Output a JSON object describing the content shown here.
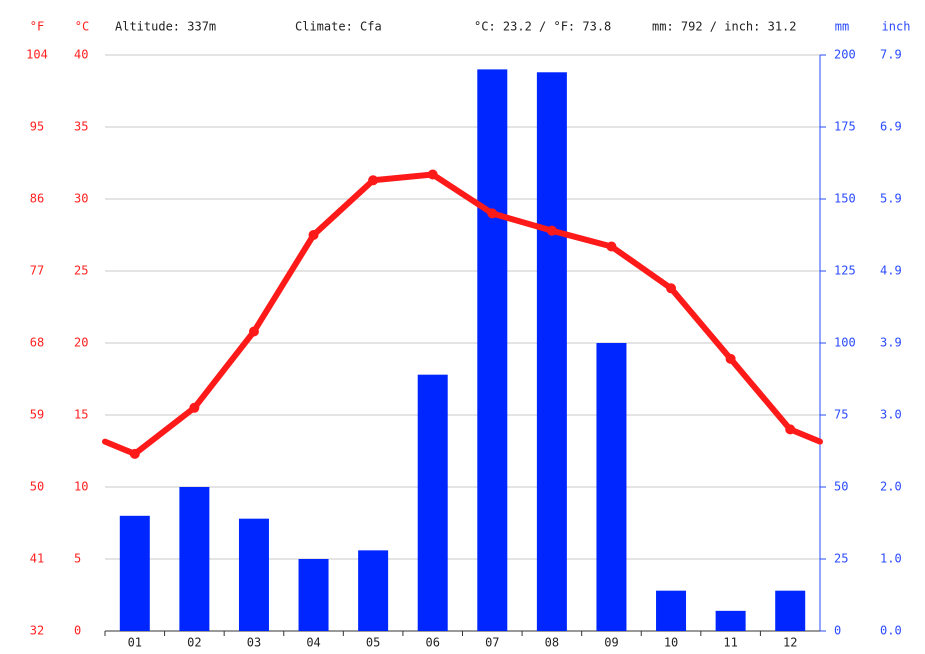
{
  "chart_data": {
    "type": "climate",
    "header": {
      "f_unit": "°F",
      "c_unit": "°C",
      "altitude": "Altitude: 337m",
      "climate": "Climate: Cfa",
      "temp_avg": "°C: 23.2 / °F: 73.8",
      "precip_total": "mm: 792 / inch: 31.2",
      "mm_unit": "mm",
      "inch_unit": "inch"
    },
    "categories": [
      "01",
      "02",
      "03",
      "04",
      "05",
      "06",
      "07",
      "08",
      "09",
      "10",
      "11",
      "12"
    ],
    "series": [
      {
        "name": "Precipitation",
        "type": "bar",
        "axis": "y2",
        "color": "#0026ff",
        "values": [
          40,
          50,
          39,
          25,
          28,
          89,
          195,
          194,
          100,
          14,
          7,
          14
        ]
      },
      {
        "name": "Temperature",
        "type": "line",
        "color": "#ff1a1a",
        "values": [
          12.3,
          15.5,
          20.8,
          27.5,
          31.3,
          31.7,
          29.0,
          27.8,
          26.7,
          23.8,
          18.9,
          14.0
        ]
      }
    ],
    "ylim": [
      0,
      40
    ],
    "yticks": [
      0,
      5,
      10,
      15,
      20,
      25,
      30,
      35,
      40
    ],
    "flim": [
      32,
      104
    ],
    "fticks": [
      32,
      41,
      50,
      59,
      68,
      77,
      86,
      95,
      104
    ],
    "y2lim": [
      0,
      200
    ],
    "y2ticks": [
      0,
      25,
      50,
      75,
      100,
      125,
      150,
      175,
      200
    ],
    "inchlim": [
      0,
      7.874
    ],
    "inchticks": [
      {
        "value": 0,
        "label": "0.0"
      },
      {
        "value": 0.984,
        "label": "1.0"
      },
      {
        "value": 1.969,
        "label": "2.0"
      },
      {
        "value": 2.953,
        "label": "3.0"
      },
      {
        "value": 3.937,
        "label": "3.9"
      },
      {
        "value": 4.921,
        "label": "4.9"
      },
      {
        "value": 5.906,
        "label": "5.9"
      },
      {
        "value": 6.89,
        "label": "6.9"
      },
      {
        "value": 7.874,
        "label": "7.9"
      }
    ],
    "grid": true
  }
}
